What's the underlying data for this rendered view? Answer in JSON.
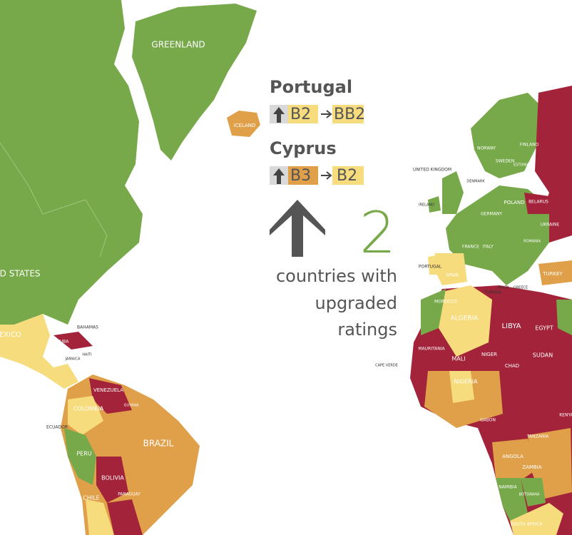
{
  "upgrades": [
    {
      "country": "Portugal",
      "from": "B2",
      "to": "BB2"
    },
    {
      "country": "Cyprus",
      "from": "B3",
      "to": "B2"
    }
  ],
  "count": 2,
  "caption": [
    "countries with",
    "upgraded",
    "ratings"
  ],
  "map_labels": [
    "GREENLAND",
    "ICELAND",
    "UNITED STATES",
    "MEXICO",
    "CUBA",
    "BAHAMAS",
    "HAITI",
    "JAMAICA",
    "COLOMBIA",
    "VENEZUELA",
    "ECUADOR",
    "PERU",
    "BRAZIL",
    "BOLIVIA",
    "CHILE",
    "PARAGUAY",
    "GUYANA",
    "NORWAY",
    "SWEDEN",
    "FINLAND",
    "ESTONIA",
    "UNITED KINGDOM",
    "IRELAND",
    "DENMARK",
    "POLAND",
    "GERMANY",
    "BELARUS",
    "UKRAINE",
    "FRANCE",
    "ITALY",
    "SPAIN",
    "PORTUGAL",
    "TURKEY",
    "GREECE",
    "ROMANIA",
    "TUNISIA",
    "MOROCCO",
    "ALGERIA",
    "LIBYA",
    "EGYPT",
    "MAURITANIA",
    "MALI",
    "NIGER",
    "CHAD",
    "SUDAN",
    "NIGERIA",
    "ANGOLA",
    "ZAMBIA",
    "NAMIBIA",
    "TANZANIA",
    "KENYA",
    "SOUTH AFRICA",
    "BOTSWANA",
    "CAPE VERDE",
    "MALTA",
    "GABON"
  ]
}
